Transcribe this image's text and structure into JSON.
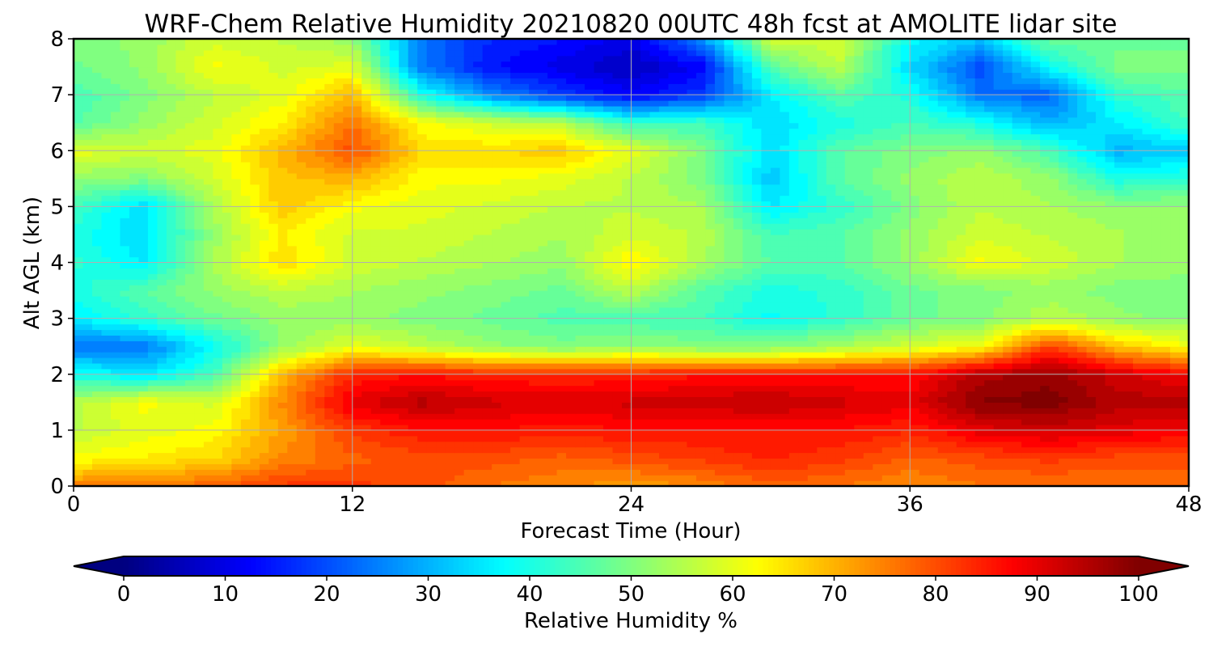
{
  "chart_data": {
    "type": "heatmap",
    "title": "WRF-Chem Relative Humidity 20210820 00UTC 48h fcst at AMOLITE lidar site",
    "xlabel": "Forecast Time (Hour)",
    "ylabel": "Alt AGL (km)",
    "xlim": [
      0,
      48
    ],
    "ylim": [
      0,
      8
    ],
    "xticks": [
      0,
      12,
      24,
      36,
      48
    ],
    "yticks": [
      0,
      1,
      2,
      3,
      4,
      5,
      6,
      7,
      8
    ],
    "grid": true,
    "x": [
      0,
      3,
      6,
      9,
      12,
      15,
      18,
      21,
      24,
      27,
      30,
      33,
      36,
      39,
      42,
      45,
      48
    ],
    "y": [
      0,
      0.5,
      1,
      1.5,
      2,
      2.5,
      3,
      3.5,
      4,
      4.5,
      5,
      5.5,
      6,
      6.5,
      7,
      7.5,
      8
    ],
    "z": [
      [
        75,
        76,
        78,
        82,
        82,
        80,
        76,
        74,
        72,
        74,
        78,
        76,
        74,
        76,
        76,
        76,
        76
      ],
      [
        62,
        64,
        66,
        74,
        78,
        80,
        80,
        78,
        80,
        82,
        84,
        82,
        78,
        80,
        82,
        80,
        80
      ],
      [
        56,
        60,
        62,
        72,
        82,
        86,
        86,
        85,
        86,
        86,
        86,
        86,
        84,
        90,
        92,
        90,
        88
      ],
      [
        55,
        62,
        58,
        74,
        90,
        95,
        92,
        91,
        92,
        93,
        94,
        92,
        90,
        99,
        100,
        95,
        95
      ],
      [
        40,
        35,
        44,
        70,
        84,
        86,
        84,
        84,
        84,
        86,
        86,
        86,
        86,
        95,
        98,
        92,
        88
      ],
      [
        24,
        24,
        38,
        52,
        60,
        56,
        52,
        50,
        52,
        50,
        50,
        54,
        58,
        62,
        82,
        68,
        62
      ],
      [
        36,
        42,
        48,
        52,
        52,
        50,
        48,
        45,
        44,
        44,
        38,
        42,
        48,
        50,
        56,
        52,
        50
      ],
      [
        40,
        46,
        52,
        56,
        54,
        52,
        50,
        48,
        56,
        46,
        40,
        42,
        48,
        50,
        52,
        50,
        50
      ],
      [
        42,
        36,
        54,
        66,
        58,
        56,
        54,
        52,
        64,
        54,
        46,
        46,
        52,
        62,
        58,
        54,
        52
      ],
      [
        40,
        34,
        52,
        64,
        58,
        58,
        56,
        54,
        58,
        56,
        44,
        46,
        52,
        58,
        56,
        54,
        52
      ],
      [
        44,
        34,
        54,
        68,
        62,
        60,
        58,
        56,
        56,
        54,
        36,
        42,
        50,
        56,
        54,
        52,
        52
      ],
      [
        52,
        50,
        58,
        68,
        70,
        62,
        62,
        60,
        56,
        50,
        32,
        46,
        52,
        56,
        52,
        40,
        42
      ],
      [
        60,
        58,
        60,
        70,
        80,
        66,
        66,
        68,
        60,
        50,
        34,
        46,
        50,
        52,
        44,
        30,
        32
      ],
      [
        46,
        52,
        58,
        64,
        76,
        62,
        58,
        55,
        42,
        44,
        34,
        40,
        44,
        40,
        30,
        36,
        44
      ],
      [
        44,
        50,
        56,
        60,
        70,
        40,
        26,
        18,
        12,
        18,
        36,
        46,
        40,
        24,
        22,
        42,
        46
      ],
      [
        48,
        52,
        62,
        58,
        60,
        24,
        14,
        10,
        6,
        12,
        46,
        56,
        34,
        20,
        38,
        50,
        50
      ],
      [
        50,
        52,
        58,
        56,
        52,
        24,
        16,
        14,
        10,
        26,
        58,
        58,
        38,
        32,
        48,
        48,
        48
      ]
    ],
    "colorbar": {
      "label": "Relative Humidity %",
      "ticks": [
        0,
        10,
        20,
        30,
        40,
        50,
        60,
        70,
        80,
        90,
        100
      ],
      "range": [
        0,
        100
      ],
      "colormap": "jet",
      "extend": "both"
    }
  }
}
